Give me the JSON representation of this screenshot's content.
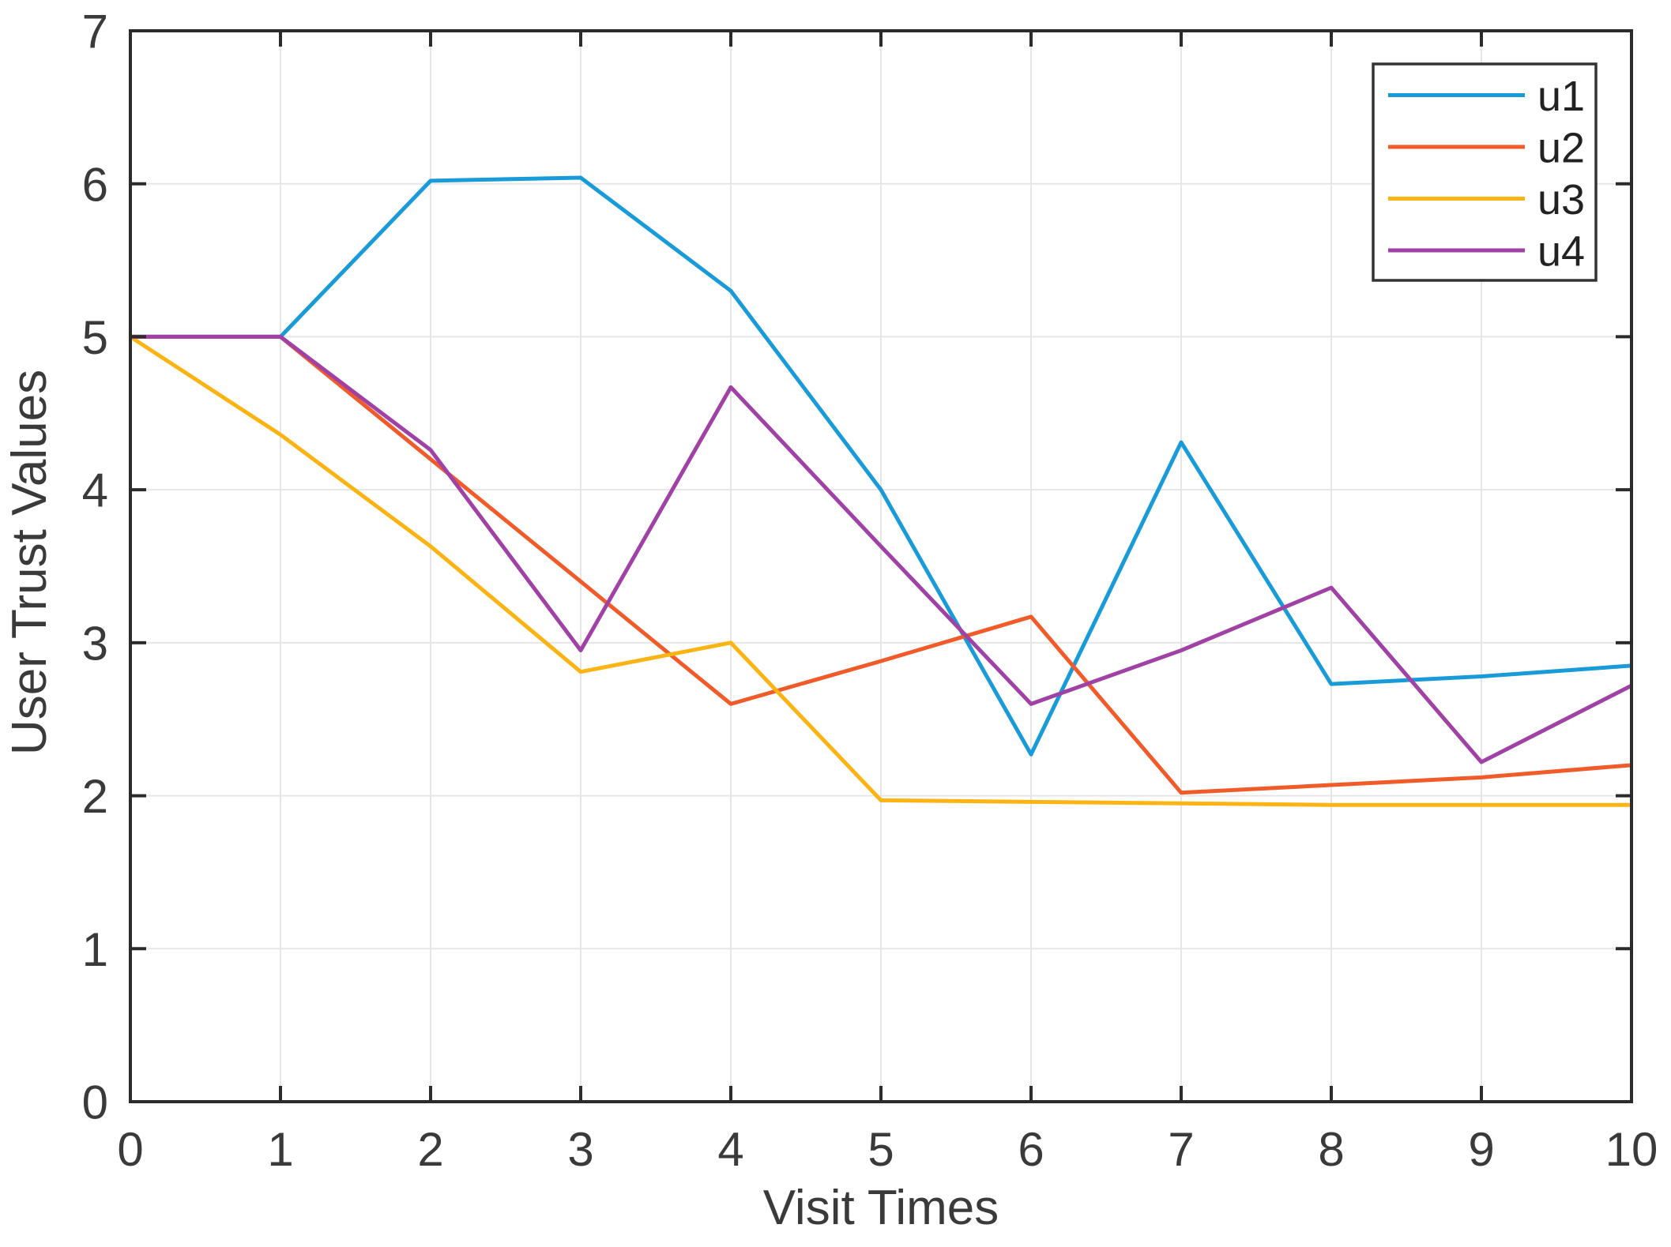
{
  "figure": {
    "background_color": "#ffffff"
  },
  "axes": {
    "box_color": "#2b2b2b",
    "grid_color": "#e6e6e6",
    "tick_color": "#2b2b2b",
    "text_color": "#3a3a3a"
  },
  "legend": {
    "border_color": "#333333",
    "background_color": "#ffffff",
    "entries": [
      "u1",
      "u2",
      "u3",
      "u4"
    ]
  },
  "chart_data": {
    "type": "line",
    "title": "",
    "xlabel": "Visit Times",
    "ylabel": "User Trust Values",
    "xlim": [
      0,
      10
    ],
    "ylim": [
      0,
      7
    ],
    "xticks": [
      0,
      1,
      2,
      3,
      4,
      5,
      6,
      7,
      8,
      9,
      10
    ],
    "yticks": [
      0,
      1,
      2,
      3,
      4,
      5,
      6,
      7
    ],
    "grid": true,
    "legend_position": "top-right",
    "x": [
      0,
      1,
      2,
      3,
      4,
      5,
      6,
      7,
      8,
      9,
      10
    ],
    "series": [
      {
        "name": "u1",
        "color": "#189bd8",
        "values": [
          5.0,
          5.0,
          6.02,
          6.04,
          5.3,
          4.0,
          2.27,
          4.31,
          2.73,
          2.78,
          2.85
        ]
      },
      {
        "name": "u2",
        "color": "#f15a29",
        "values": [
          5.0,
          5.0,
          4.2,
          3.4,
          2.6,
          2.88,
          3.17,
          2.02,
          2.07,
          2.12,
          2.2
        ]
      },
      {
        "name": "u3",
        "color": "#fcb415",
        "values": [
          5.0,
          4.36,
          3.63,
          2.81,
          3.0,
          1.97,
          1.96,
          1.95,
          1.94,
          1.94,
          1.94
        ]
      },
      {
        "name": "u4",
        "color": "#a041a5",
        "values": [
          5.0,
          5.0,
          4.26,
          2.95,
          4.67,
          3.63,
          2.6,
          2.95,
          3.36,
          2.22,
          2.72
        ]
      }
    ]
  }
}
